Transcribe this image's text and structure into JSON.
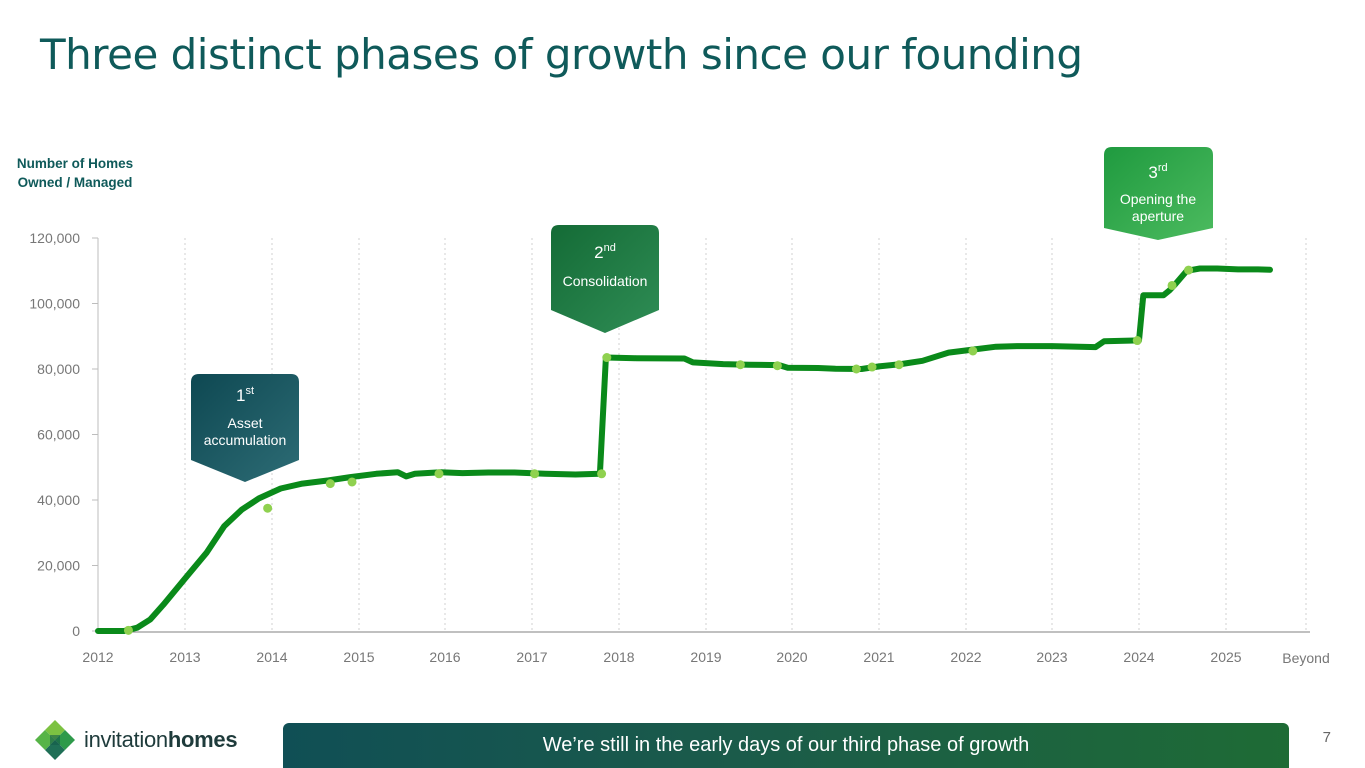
{
  "slide": {
    "title": "Three distinct phases of growth since our founding",
    "banner": "We’re still in the early days of our third phase of growth",
    "page_number": "7",
    "logo": {
      "word1": "invitation",
      "word2": "homes"
    }
  },
  "colors": {
    "line": "#0a8a1a",
    "marker": "#8fd14f",
    "grid": "#d0d0d0",
    "callout1": "#124c58",
    "callout2": "#197a40",
    "callout3": "#28a44a",
    "title": "#0f5a5a"
  },
  "chart_data": {
    "type": "line",
    "title": "",
    "ylabel": "Number of Homes Owned / Managed",
    "xlabel": "",
    "ylim": [
      0,
      120000
    ],
    "xlim": [
      2012,
      2026
    ],
    "yticks": [
      "0",
      "20,000",
      "40,000",
      "60,000",
      "80,000",
      "100,000",
      "120,000"
    ],
    "ytick_values": [
      0,
      20000,
      40000,
      60000,
      80000,
      100000,
      120000
    ],
    "xticks": [
      "2012",
      "2013",
      "2014",
      "2015",
      "2016",
      "2017",
      "2018",
      "2019",
      "2020",
      "2021",
      "2022",
      "2023",
      "2024",
      "2025",
      "Beyond"
    ],
    "xtick_values": [
      2012,
      2013,
      2014,
      2015,
      2016,
      2017,
      2018,
      2019,
      2020,
      2021,
      2022,
      2023,
      2024,
      2025,
      2026
    ],
    "grid": "vertical dashed",
    "series": [
      {
        "name": "",
        "x": [
          2012.0,
          2012.3,
          2012.45,
          2012.6,
          2012.75,
          2013.0,
          2013.25,
          2013.45,
          2013.65,
          2013.85,
          2014.1,
          2014.35,
          2014.65,
          2014.9,
          2015.2,
          2015.45,
          2015.55,
          2015.65,
          2015.95,
          2016.2,
          2016.5,
          2016.8,
          2017.15,
          2017.5,
          2017.78,
          2017.85,
          2018.2,
          2018.75,
          2018.85,
          2019.2,
          2019.5,
          2019.85,
          2019.95,
          2020.3,
          2020.5,
          2020.8,
          2021.0,
          2021.25,
          2021.5,
          2021.8,
          2022.1,
          2022.35,
          2022.6,
          2023.0,
          2023.5,
          2023.6,
          2023.95,
          2024.0,
          2024.05,
          2024.28,
          2024.35,
          2024.42,
          2024.55,
          2024.7,
          2024.9,
          2025.15,
          2025.4,
          2025.55
        ],
        "values": [
          0,
          0,
          1000,
          3500,
          8000,
          16000,
          24000,
          32000,
          37000,
          40500,
          43500,
          45000,
          46000,
          47000,
          48000,
          48500,
          47200,
          48000,
          48500,
          48200,
          48400,
          48400,
          48000,
          47800,
          48000,
          83500,
          83300,
          83200,
          82000,
          81500,
          81300,
          81200,
          80400,
          80300,
          80100,
          80000,
          80800,
          81500,
          82500,
          85000,
          86000,
          86800,
          87000,
          87000,
          86700,
          88500,
          88700,
          88700,
          102500,
          102500,
          104000,
          106000,
          110000,
          110700,
          110700,
          110400,
          110400,
          110300
        ]
      }
    ],
    "markers": [
      {
        "x": 2012.35,
        "y": 200
      },
      {
        "x": 2013.95,
        "y": 37500
      },
      {
        "x": 2014.67,
        "y": 45000
      },
      {
        "x": 2014.92,
        "y": 45500
      },
      {
        "x": 2015.93,
        "y": 48000
      },
      {
        "x": 2017.03,
        "y": 48000
      },
      {
        "x": 2017.8,
        "y": 48000
      },
      {
        "x": 2017.86,
        "y": 83500
      },
      {
        "x": 2019.4,
        "y": 81300
      },
      {
        "x": 2019.83,
        "y": 81000
      },
      {
        "x": 2020.74,
        "y": 80000
      },
      {
        "x": 2020.92,
        "y": 80600
      },
      {
        "x": 2021.23,
        "y": 81300
      },
      {
        "x": 2022.08,
        "y": 85500
      },
      {
        "x": 2023.98,
        "y": 88700
      },
      {
        "x": 2024.38,
        "y": 105500
      },
      {
        "x": 2024.57,
        "y": 110200
      }
    ],
    "annotations": [
      {
        "id": "phase1",
        "ordinal": "1",
        "suffix": "st",
        "lines": [
          "Asset",
          "accumulation"
        ]
      },
      {
        "id": "phase2",
        "ordinal": "2",
        "suffix": "nd",
        "lines": [
          "Consolidation"
        ]
      },
      {
        "id": "phase3",
        "ordinal": "3",
        "suffix": "rd",
        "lines": [
          "Opening the",
          "aperture"
        ]
      }
    ]
  }
}
